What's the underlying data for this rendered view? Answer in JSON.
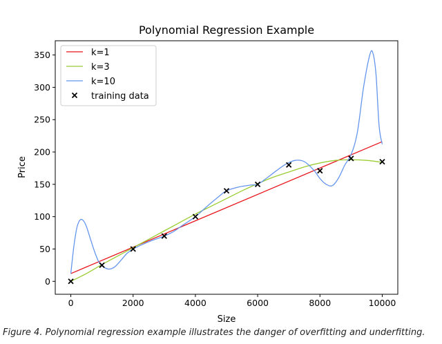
{
  "chart_data": {
    "type": "line",
    "title": "Polynomial Regression Example",
    "xlabel": "Size",
    "ylabel": "Price",
    "xlim": [
      -500,
      10500
    ],
    "ylim": [
      -20,
      372
    ],
    "xticks": [
      0,
      2000,
      4000,
      6000,
      8000,
      10000
    ],
    "yticks": [
      0,
      50,
      100,
      150,
      200,
      250,
      300,
      350
    ],
    "legend_position": "top-left",
    "series": [
      {
        "name": "k=1",
        "color": "#e8141b",
        "style": "line",
        "x": [
          0,
          10000
        ],
        "y": [
          12,
          216
        ]
      },
      {
        "name": "k=3",
        "color": "#9acd32",
        "style": "line",
        "x": [
          0,
          500,
          1000,
          1500,
          2000,
          2500,
          3000,
          3500,
          4000,
          4500,
          5000,
          5500,
          6000,
          6500,
          7000,
          7500,
          8000,
          8500,
          9000,
          9500,
          10000
        ],
        "y": [
          0,
          12,
          26,
          39,
          52,
          65,
          78,
          91,
          104,
          116,
          128,
          140,
          151,
          161,
          169,
          177,
          183,
          187,
          188,
          187,
          184
        ]
      },
      {
        "name": "k=10",
        "color": "#6495ed",
        "style": "line",
        "x": [
          0,
          100,
          200,
          300,
          400,
          500,
          600,
          700,
          800,
          900,
          1000,
          1200,
          1400,
          1600,
          1800,
          2000,
          2300,
          2600,
          3000,
          3300,
          3600,
          4000,
          4400,
          4800,
          5000,
          5400,
          5800,
          6000,
          6300,
          6600,
          6900,
          7200,
          7500,
          7800,
          8000,
          8200,
          8400,
          8600,
          8800,
          9000,
          9200,
          9400,
          9600,
          9700,
          9800,
          9900,
          10000
        ],
        "y": [
          12,
          55,
          84,
          95,
          94,
          85,
          70,
          55,
          41,
          30,
          24,
          19,
          22,
          32,
          43,
          50,
          57,
          63,
          70,
          77,
          87,
          100,
          117,
          133,
          140,
          146,
          149,
          150,
          160,
          171,
          181,
          187,
          185,
          172,
          159,
          150,
          148,
          160,
          180,
          196,
          230,
          300,
          350,
          353,
          320,
          240,
          212
        ]
      },
      {
        "name": "training data",
        "color": "#000000",
        "style": "scatter",
        "marker": "x",
        "x": [
          0,
          1000,
          2000,
          3000,
          4000,
          5000,
          6000,
          7000,
          8000,
          9000,
          10000
        ],
        "y": [
          0,
          25,
          50,
          70,
          100,
          140,
          150,
          180,
          171,
          190,
          185
        ]
      }
    ]
  },
  "caption": "Figure 4. Polynomial regression example illustrates the danger of overfitting and underfitting."
}
